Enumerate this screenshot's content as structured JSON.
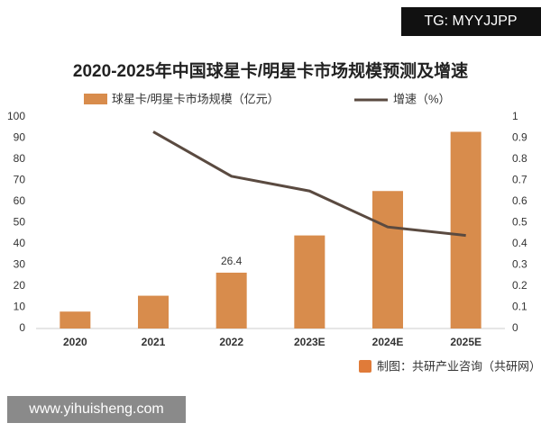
{
  "chart_data": {
    "type": "bar",
    "title": "2020-2025年中国球星卡/明星卡市场规模预测及增速",
    "categories": [
      "2020",
      "2021",
      "2022",
      "2023E",
      "2024E",
      "2025E"
    ],
    "series": [
      {
        "name": "球星卡/明星卡市场规模（亿元）",
        "type": "bar",
        "color": "#d88c4c",
        "values": [
          8,
          15.5,
          26.4,
          44,
          65,
          93
        ]
      },
      {
        "name": "增速（%）",
        "type": "line",
        "axis": "y2",
        "color": "#5a4a40",
        "values": [
          null,
          0.93,
          0.72,
          0.65,
          0.48,
          0.44
        ]
      }
    ],
    "ylim": [
      0,
      100
    ],
    "yticks": [
      0,
      10,
      20,
      30,
      40,
      50,
      60,
      70,
      80,
      90,
      100
    ],
    "y2lim": [
      0,
      1
    ],
    "y2ticks": [
      0,
      0.1,
      0.2,
      0.3,
      0.4,
      0.5,
      0.6,
      0.7,
      0.8,
      0.9,
      1
    ],
    "grid": false,
    "source": "制图：共研产业咨询（共研网）"
  },
  "overlays": {
    "top_right": "TG: MYYJJPP",
    "bottom_left": "www.yihuisheng.com"
  }
}
